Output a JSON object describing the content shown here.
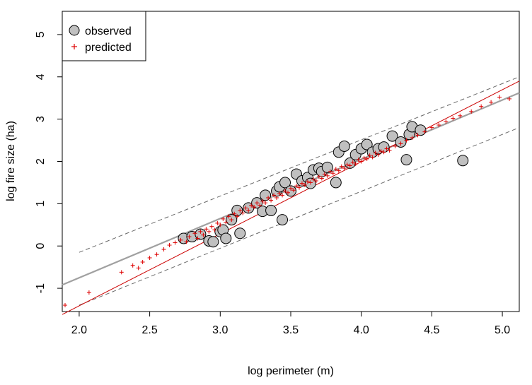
{
  "chart_data": {
    "type": "scatter",
    "title": "",
    "xlabel": "log perimeter (m)",
    "ylabel": "log fire size (ha)",
    "xlim": [
      1.88,
      5.12
    ],
    "ylim": [
      -1.55,
      5.55
    ],
    "x_ticks": [
      {
        "value": 2.0,
        "label": "2.0"
      },
      {
        "value": 2.5,
        "label": "2.5"
      },
      {
        "value": 3.0,
        "label": "3.0"
      },
      {
        "value": 3.5,
        "label": "3.5"
      },
      {
        "value": 4.0,
        "label": "4.0"
      },
      {
        "value": 4.5,
        "label": "4.5"
      },
      {
        "value": 5.0,
        "label": "5.0"
      }
    ],
    "y_ticks": [
      {
        "value": -1,
        "label": "-1"
      },
      {
        "value": 0,
        "label": "0"
      },
      {
        "value": 1,
        "label": "1"
      },
      {
        "value": 2,
        "label": "2"
      },
      {
        "value": 3,
        "label": "3"
      },
      {
        "value": 4,
        "label": "4"
      },
      {
        "value": 5,
        "label": "5"
      }
    ],
    "grid": false,
    "legend_position": "top-left",
    "colors": {
      "observed_fill": "#c0c0c0",
      "observed_stroke": "#000000",
      "predicted": "#dd0000",
      "fit_red": "#cc0000",
      "fit_gray": "#a0a0a0",
      "band": "#666666"
    },
    "series": [
      {
        "name": "observed",
        "marker": "circle",
        "points": [
          [
            2.74,
            0.18
          ],
          [
            2.8,
            0.22
          ],
          [
            2.86,
            0.28
          ],
          [
            2.92,
            0.12
          ],
          [
            2.95,
            0.1
          ],
          [
            3.0,
            0.34
          ],
          [
            3.02,
            0.38
          ],
          [
            3.04,
            0.18
          ],
          [
            3.08,
            0.62
          ],
          [
            3.12,
            0.84
          ],
          [
            3.14,
            0.3
          ],
          [
            3.2,
            0.9
          ],
          [
            3.26,
            1.02
          ],
          [
            3.3,
            0.82
          ],
          [
            3.32,
            1.2
          ],
          [
            3.36,
            0.84
          ],
          [
            3.4,
            1.3
          ],
          [
            3.42,
            1.4
          ],
          [
            3.44,
            0.62
          ],
          [
            3.46,
            1.5
          ],
          [
            3.5,
            1.3
          ],
          [
            3.54,
            1.7
          ],
          [
            3.58,
            1.54
          ],
          [
            3.62,
            1.62
          ],
          [
            3.64,
            1.48
          ],
          [
            3.66,
            1.8
          ],
          [
            3.7,
            1.84
          ],
          [
            3.72,
            1.76
          ],
          [
            3.76,
            1.86
          ],
          [
            3.82,
            1.5
          ],
          [
            3.84,
            2.22
          ],
          [
            3.88,
            2.36
          ],
          [
            3.92,
            1.96
          ],
          [
            3.96,
            2.16
          ],
          [
            4.0,
            2.3
          ],
          [
            4.04,
            2.4
          ],
          [
            4.08,
            2.22
          ],
          [
            4.12,
            2.3
          ],
          [
            4.16,
            2.34
          ],
          [
            4.22,
            2.6
          ],
          [
            4.28,
            2.46
          ],
          [
            4.32,
            2.04
          ],
          [
            4.34,
            2.64
          ],
          [
            4.36,
            2.82
          ],
          [
            4.42,
            2.74
          ],
          [
            4.72,
            2.02
          ]
        ]
      },
      {
        "name": "predicted",
        "marker": "plus",
        "points": [
          [
            1.9,
            -1.4
          ],
          [
            2.07,
            -1.1
          ],
          [
            2.3,
            -0.62
          ],
          [
            2.38,
            -0.46
          ],
          [
            2.42,
            -0.52
          ],
          [
            2.45,
            -0.38
          ],
          [
            2.5,
            -0.28
          ],
          [
            2.55,
            -0.2
          ],
          [
            2.6,
            -0.08
          ],
          [
            2.64,
            0.02
          ],
          [
            2.68,
            0.08
          ],
          [
            2.72,
            0.14
          ],
          [
            2.76,
            0.1
          ],
          [
            2.78,
            0.22
          ],
          [
            2.82,
            0.3
          ],
          [
            2.84,
            0.18
          ],
          [
            2.86,
            0.34
          ],
          [
            2.88,
            0.26
          ],
          [
            2.9,
            0.4
          ],
          [
            2.92,
            0.34
          ],
          [
            2.94,
            0.46
          ],
          [
            2.96,
            0.38
          ],
          [
            2.98,
            0.54
          ],
          [
            3.0,
            0.5
          ],
          [
            3.02,
            0.64
          ],
          [
            3.04,
            0.56
          ],
          [
            3.06,
            0.7
          ],
          [
            3.08,
            0.62
          ],
          [
            3.1,
            0.76
          ],
          [
            3.12,
            0.7
          ],
          [
            3.14,
            0.84
          ],
          [
            3.16,
            0.78
          ],
          [
            3.18,
            0.9
          ],
          [
            3.2,
            0.84
          ],
          [
            3.22,
            0.96
          ],
          [
            3.24,
            0.92
          ],
          [
            3.26,
            1.02
          ],
          [
            3.28,
            0.96
          ],
          [
            3.3,
            1.06
          ],
          [
            3.32,
            1.02
          ],
          [
            3.34,
            1.14
          ],
          [
            3.36,
            1.08
          ],
          [
            3.38,
            1.2
          ],
          [
            3.4,
            1.14
          ],
          [
            3.42,
            1.24
          ],
          [
            3.44,
            1.2
          ],
          [
            3.46,
            1.3
          ],
          [
            3.48,
            1.26
          ],
          [
            3.5,
            1.36
          ],
          [
            3.52,
            1.32
          ],
          [
            3.54,
            1.42
          ],
          [
            3.56,
            1.38
          ],
          [
            3.58,
            1.48
          ],
          [
            3.6,
            1.44
          ],
          [
            3.62,
            1.52
          ],
          [
            3.64,
            1.5
          ],
          [
            3.66,
            1.58
          ],
          [
            3.68,
            1.54
          ],
          [
            3.7,
            1.64
          ],
          [
            3.72,
            1.6
          ],
          [
            3.74,
            1.7
          ],
          [
            3.76,
            1.66
          ],
          [
            3.78,
            1.76
          ],
          [
            3.8,
            1.72
          ],
          [
            3.82,
            1.82
          ],
          [
            3.84,
            1.78
          ],
          [
            3.86,
            1.88
          ],
          [
            3.88,
            1.84
          ],
          [
            3.9,
            1.92
          ],
          [
            3.92,
            1.9
          ],
          [
            3.94,
            1.98
          ],
          [
            3.96,
            1.94
          ],
          [
            3.98,
            2.04
          ],
          [
            4.0,
            2.0
          ],
          [
            4.02,
            2.08
          ],
          [
            4.04,
            2.06
          ],
          [
            4.06,
            2.14
          ],
          [
            4.08,
            2.1
          ],
          [
            4.1,
            2.2
          ],
          [
            4.12,
            2.16
          ],
          [
            4.14,
            2.24
          ],
          [
            4.16,
            2.22
          ],
          [
            4.18,
            2.3
          ],
          [
            4.2,
            2.26
          ],
          [
            4.24,
            2.36
          ],
          [
            4.28,
            2.42
          ],
          [
            4.32,
            2.5
          ],
          [
            4.36,
            2.56
          ],
          [
            4.4,
            2.62
          ],
          [
            4.45,
            2.7
          ],
          [
            4.5,
            2.8
          ],
          [
            4.55,
            2.86
          ],
          [
            4.6,
            2.94
          ],
          [
            4.65,
            3.02
          ],
          [
            4.7,
            3.08
          ],
          [
            4.78,
            3.18
          ],
          [
            4.85,
            3.3
          ],
          [
            4.92,
            3.4
          ],
          [
            4.98,
            3.52
          ],
          [
            5.05,
            3.48
          ]
        ]
      }
    ],
    "lines": {
      "fit_red": {
        "from": [
          1.88,
          -1.62
        ],
        "to": [
          5.12,
          3.9
        ]
      },
      "fit_gray": {
        "from": [
          1.88,
          -0.92
        ],
        "to": [
          5.12,
          3.62
        ]
      },
      "upper_band": {
        "from": [
          2.0,
          -0.15
        ],
        "to": [
          5.12,
          4.0
        ]
      },
      "lower_band": {
        "from": [
          2.0,
          -1.4
        ],
        "to": [
          5.12,
          2.8
        ]
      }
    }
  }
}
